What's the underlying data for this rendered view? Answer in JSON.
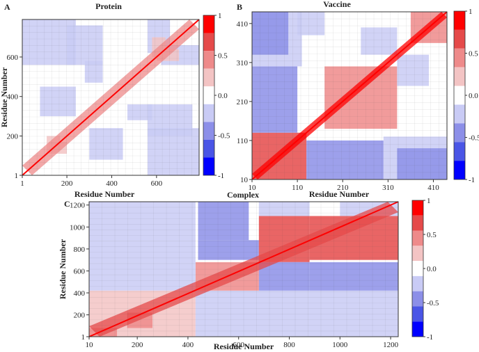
{
  "figure": {
    "colorbar": {
      "levels": [
        -1,
        -0.75,
        -0.5,
        -0.25,
        0,
        0.25,
        0.5,
        0.75,
        1
      ],
      "colors": [
        "#0000ff",
        "#4a55e6",
        "#8c8fe8",
        "#c9cbf5",
        "#ffffff",
        "#f3c4c4",
        "#ee8a8a",
        "#e54a4a",
        "#ff0000"
      ],
      "tick_labels": [
        "1",
        "0.5",
        "0.0",
        "-0.5",
        "-1"
      ],
      "tick_values": [
        1,
        0.5,
        0,
        -0.5,
        -1
      ]
    }
  },
  "chart_data": [
    {
      "panel": "A",
      "type": "heatmap",
      "title": "Protein",
      "xlabel": "Residue Number",
      "ylabel": "Residue Number",
      "xlim": [
        1,
        790
      ],
      "ylim": [
        1,
        790
      ],
      "xticks": [
        1,
        200,
        400,
        600
      ],
      "xtick_labels": [
        "1",
        "200",
        "400",
        "600"
      ],
      "yticks": [
        1,
        200,
        400,
        600
      ],
      "ytick_labels": [
        "1",
        "200",
        "400",
        "600"
      ],
      "zlim": [
        -1,
        1
      ],
      "description": "Dynamic cross-correlation map; strong positive correlation along the diagonal, scattered weak negative (blue) correlations off-diagonal",
      "blocks": [
        {
          "x": [
            1,
            790
          ],
          "y": [
            1,
            790
          ],
          "value": 0.0
        },
        {
          "x": [
            560,
            790
          ],
          "y": [
            1,
            240
          ],
          "value": -0.3
        },
        {
          "x": [
            1,
            240
          ],
          "y": [
            560,
            790
          ],
          "value": -0.3
        },
        {
          "x": [
            300,
            450
          ],
          "y": [
            80,
            240
          ],
          "value": -0.25
        },
        {
          "x": [
            80,
            240
          ],
          "y": [
            300,
            450
          ],
          "value": -0.25
        },
        {
          "x": [
            200,
            360
          ],
          "y": [
            560,
            760
          ],
          "value": -0.25
        },
        {
          "x": [
            560,
            760
          ],
          "y": [
            200,
            360
          ],
          "value": -0.25
        },
        {
          "x": [
            470,
            580
          ],
          "y": [
            280,
            360
          ],
          "value": -0.3
        },
        {
          "x": [
            280,
            360
          ],
          "y": [
            470,
            580
          ],
          "value": -0.3
        },
        {
          "x": [
            620,
            790
          ],
          "y": [
            560,
            660
          ],
          "value": -0.25
        },
        {
          "x": [
            560,
            660
          ],
          "y": [
            620,
            790
          ],
          "value": -0.25
        },
        {
          "x": [
            120,
            200
          ],
          "y": [
            110,
            170
          ],
          "value": 0.25
        },
        {
          "x": [
            110,
            170
          ],
          "y": [
            120,
            200
          ],
          "value": 0.25
        },
        {
          "x": [
            600,
            700
          ],
          "y": [
            580,
            640
          ],
          "value": 0.25
        },
        {
          "x": [
            580,
            640
          ],
          "y": [
            600,
            700
          ],
          "value": 0.25
        }
      ],
      "diagonal_band": {
        "value": 0.6,
        "width": 28
      }
    },
    {
      "panel": "B",
      "type": "heatmap",
      "title": "Vaccine",
      "xlabel": "Residue Number",
      "ylabel": "",
      "xlim": [
        10,
        440
      ],
      "ylim": [
        10,
        440
      ],
      "xticks": [
        10,
        110,
        210,
        310,
        410
      ],
      "xtick_labels": [
        "10",
        "110",
        "210",
        "310",
        "410"
      ],
      "yticks": [
        10,
        110,
        210,
        310,
        410
      ],
      "ytick_labels": [
        "10",
        "110",
        "210",
        "310",
        "410"
      ],
      "zlim": [
        -1,
        1
      ],
      "description": "Dynamic cross-correlation map; strong positive diagonal, large positive block at low residues, blue negative regions off-diagonal",
      "blocks": [
        {
          "x": [
            10,
            440
          ],
          "y": [
            10,
            440
          ],
          "value": 0.0
        },
        {
          "x": [
            10,
            130
          ],
          "y": [
            10,
            130
          ],
          "value": 0.7
        },
        {
          "x": [
            130,
            300
          ],
          "y": [
            10,
            110
          ],
          "value": -0.45
        },
        {
          "x": [
            10,
            110
          ],
          "y": [
            130,
            300
          ],
          "value": -0.45
        },
        {
          "x": [
            300,
            440
          ],
          "y": [
            10,
            120
          ],
          "value": -0.35
        },
        {
          "x": [
            10,
            120
          ],
          "y": [
            300,
            440
          ],
          "value": -0.35
        },
        {
          "x": [
            170,
            330
          ],
          "y": [
            140,
            300
          ],
          "value": 0.45
        },
        {
          "x": [
            10,
            90
          ],
          "y": [
            330,
            440
          ],
          "value": -0.4
        },
        {
          "x": [
            330,
            440
          ],
          "y": [
            10,
            90
          ],
          "value": -0.4
        },
        {
          "x": [
            360,
            440
          ],
          "y": [
            360,
            440
          ],
          "value": 0.5
        },
        {
          "x": [
            110,
            170
          ],
          "y": [
            380,
            440
          ],
          "value": -0.3
        },
        {
          "x": [
            250,
            330
          ],
          "y": [
            330,
            400
          ],
          "value": -0.3
        },
        {
          "x": [
            330,
            400
          ],
          "y": [
            250,
            330
          ],
          "value": -0.3
        }
      ],
      "diagonal_band": {
        "value": 0.9,
        "width": 16
      }
    },
    {
      "panel": "C",
      "type": "heatmap",
      "title": "Complex",
      "xlabel": "Residue Number",
      "ylabel": "Residue Number",
      "xlim": [
        10,
        1230
      ],
      "ylim": [
        1,
        1230
      ],
      "xticks": [
        10,
        200,
        400,
        600,
        800,
        1000,
        1200
      ],
      "xtick_labels": [
        "10",
        "200",
        "400",
        "600",
        "800",
        "1000",
        "1200"
      ],
      "yticks": [
        1,
        200,
        400,
        600,
        800,
        1000,
        1200
      ],
      "ytick_labels": [
        "1",
        "200",
        "400",
        "600",
        "800",
        "1000",
        "1200"
      ],
      "zlim": [
        -1,
        1
      ],
      "description": "Dynamic cross-correlation map of complex; strong positive regions 680-880 x 680-1100 and 880-1230 x 700-1100, strong negative blue bands",
      "blocks": [
        {
          "x": [
            10,
            1230
          ],
          "y": [
            1,
            1230
          ],
          "value": 0.0
        },
        {
          "x": [
            440,
            640
          ],
          "y": [
            880,
            1230
          ],
          "value": -0.55
        },
        {
          "x": [
            440,
            680
          ],
          "y": [
            700,
            880
          ],
          "value": -0.4
        },
        {
          "x": [
            680,
            880
          ],
          "y": [
            680,
            1100
          ],
          "value": 0.7
        },
        {
          "x": [
            880,
            1230
          ],
          "y": [
            700,
            1100
          ],
          "value": 0.7
        },
        {
          "x": [
            680,
            880
          ],
          "y": [
            1100,
            1230
          ],
          "value": -0.35
        },
        {
          "x": [
            680,
            880
          ],
          "y": [
            420,
            680
          ],
          "value": -0.45
        },
        {
          "x": [
            880,
            1230
          ],
          "y": [
            420,
            680
          ],
          "value": -0.55
        },
        {
          "x": [
            430,
            680
          ],
          "y": [
            420,
            680
          ],
          "value": 0.55
        },
        {
          "x": [
            10,
            430
          ],
          "y": [
            420,
            1230
          ],
          "value": -0.3
        },
        {
          "x": [
            10,
            430
          ],
          "y": [
            1,
            420
          ],
          "value": 0.25
        },
        {
          "x": [
            430,
            1230
          ],
          "y": [
            1,
            420
          ],
          "value": -0.25
        },
        {
          "x": [
            160,
            260
          ],
          "y": [
            80,
            220
          ],
          "value": 0.6
        },
        {
          "x": [
            1,
            120
          ],
          "y": [
            1,
            80
          ],
          "value": 0.5
        },
        {
          "x": [
            1000,
            1230
          ],
          "y": [
            1100,
            1230
          ],
          "value": -0.3
        }
      ],
      "diagonal_band": {
        "value": 0.8,
        "width": 30
      }
    }
  ]
}
